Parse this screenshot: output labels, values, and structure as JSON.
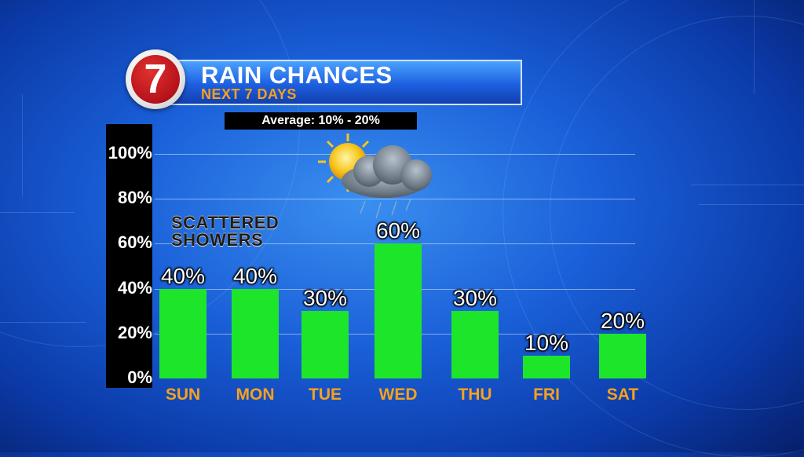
{
  "header": {
    "logo_text": "7",
    "title": "RAIN CHANCES",
    "subtitle": "NEXT 7 DAYS",
    "average": "Average: 10% - 20%"
  },
  "graphic": {
    "icon": "partly-cloudy-rain-icon",
    "label_line1": "SCATTERED",
    "label_line2": "SHOWERS"
  },
  "colors": {
    "bar": "#1de62a",
    "day_label": "#f7a21c",
    "logo_red": "#b5121b"
  },
  "chart_data": {
    "type": "bar",
    "title": "RAIN CHANCES",
    "subtitle": "NEXT 7 DAYS",
    "categories": [
      "SUN",
      "MON",
      "TUE",
      "WED",
      "THU",
      "FRI",
      "SAT"
    ],
    "values": [
      40,
      40,
      30,
      60,
      30,
      10,
      20
    ],
    "value_labels": [
      "40%",
      "40%",
      "30%",
      "60%",
      "30%",
      "10%",
      "20%"
    ],
    "yticks": [
      "0%",
      "20%",
      "40%",
      "60%",
      "80%",
      "100%"
    ],
    "ylim": [
      0,
      100
    ],
    "xlabel": "",
    "ylabel": "",
    "grid": true
  }
}
